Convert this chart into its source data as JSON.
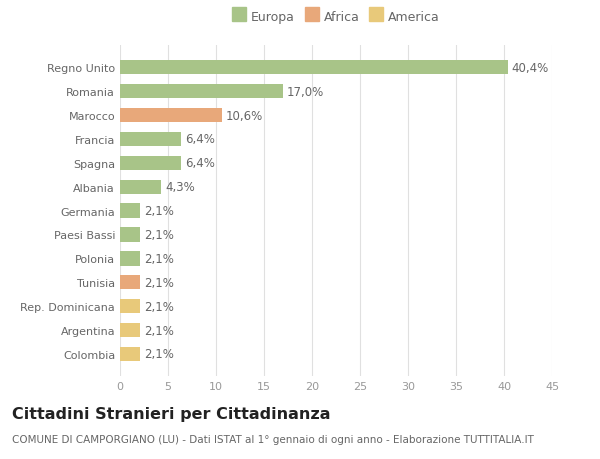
{
  "categories": [
    "Colombia",
    "Argentina",
    "Rep. Dominicana",
    "Tunisia",
    "Polonia",
    "Paesi Bassi",
    "Germania",
    "Albania",
    "Spagna",
    "Francia",
    "Marocco",
    "Romania",
    "Regno Unito"
  ],
  "values": [
    2.1,
    2.1,
    2.1,
    2.1,
    2.1,
    2.1,
    2.1,
    4.3,
    6.4,
    6.4,
    10.6,
    17.0,
    40.4
  ],
  "labels": [
    "2,1%",
    "2,1%",
    "2,1%",
    "2,1%",
    "2,1%",
    "2,1%",
    "2,1%",
    "4,3%",
    "6,4%",
    "6,4%",
    "10,6%",
    "17,0%",
    "40,4%"
  ],
  "colors": [
    "#e8c97a",
    "#e8c97a",
    "#e8c97a",
    "#e8a87a",
    "#a8c488",
    "#a8c488",
    "#a8c488",
    "#a8c488",
    "#a8c488",
    "#a8c488",
    "#e8a87a",
    "#a8c488",
    "#a8c488"
  ],
  "legend": [
    {
      "label": "Europa",
      "color": "#a8c488"
    },
    {
      "label": "Africa",
      "color": "#e8a87a"
    },
    {
      "label": "America",
      "color": "#e8c97a"
    }
  ],
  "xlim": [
    0,
    45
  ],
  "xticks": [
    0,
    5,
    10,
    15,
    20,
    25,
    30,
    35,
    40,
    45
  ],
  "title": "Cittadini Stranieri per Cittadinanza",
  "subtitle": "COMUNE DI CAMPORGIANO (LU) - Dati ISTAT al 1° gennaio di ogni anno - Elaborazione TUTTITALIA.IT",
  "background_color": "#ffffff",
  "grid_color": "#e0e0e0",
  "bar_height": 0.6,
  "label_fontsize": 8.5,
  "title_fontsize": 11.5,
  "subtitle_fontsize": 7.5,
  "tick_fontsize": 8,
  "ytick_fontsize": 8
}
